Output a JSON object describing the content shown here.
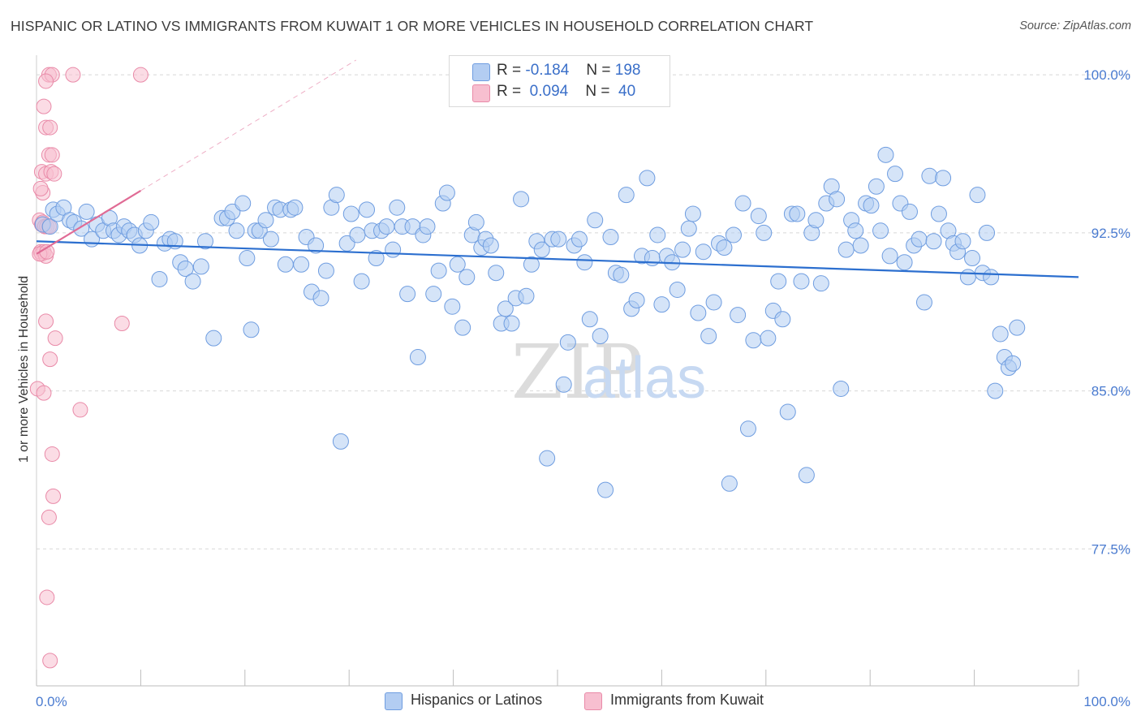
{
  "title": "HISPANIC OR LATINO VS IMMIGRANTS FROM KUWAIT 1 OR MORE VEHICLES IN HOUSEHOLD CORRELATION CHART",
  "source": "Source: ZipAtlas.com",
  "watermark": {
    "zip": "ZIP",
    "atlas": "atlas"
  },
  "colors": {
    "blue_fill": "#b3cdf2",
    "blue_stroke": "#6f9de0",
    "blue_line": "#2c6fcf",
    "pink_fill": "#f7bfd0",
    "pink_stroke": "#e98aa8",
    "pink_line": "#e06b95",
    "axis_text": "#4a7bd0",
    "grid": "#d8d8d8"
  },
  "legend_top": [
    {
      "r_label": "R =",
      "r_value": "-0.184",
      "n_label": "N =",
      "n_value": "198",
      "color": "#b3cdf2",
      "stroke": "#6f9de0"
    },
    {
      "r_label": "R =",
      "r_value": "0.094",
      "n_label": "N =",
      "n_value": "40",
      "color": "#f7bfd0",
      "stroke": "#e98aa8"
    }
  ],
  "chart_data": {
    "type": "scatter",
    "title": "HISPANIC OR LATINO VS IMMIGRANTS FROM KUWAIT 1 OR MORE VEHICLES IN HOUSEHOLD CORRELATION CHART",
    "xlabel": "",
    "ylabel": "1 or more Vehicles in Household",
    "x_tick_labels": [
      "0.0%",
      "100.0%"
    ],
    "y_tick_labels": [
      "100.0%",
      "92.5%",
      "85.0%",
      "77.5%"
    ],
    "y_ticks": [
      100.0,
      92.5,
      85.0,
      77.5
    ],
    "xlim": [
      0,
      100
    ],
    "ylim": [
      71.0,
      100.7
    ],
    "grid": "horizontal-dashed",
    "legend_placement": "bottom",
    "series": [
      {
        "name": "Hispanics or Latinos",
        "color": "#b3cdf2",
        "trend": {
          "x": [
            0,
            100
          ],
          "y": [
            92.1,
            90.4
          ],
          "r": -0.184,
          "n": 198
        },
        "points": [
          [
            0.6,
            92.9
          ],
          [
            1.3,
            92.8
          ],
          [
            1.6,
            93.6
          ],
          [
            2.0,
            93.4
          ],
          [
            2.6,
            93.7
          ],
          [
            3.2,
            93.1
          ],
          [
            3.6,
            93.0
          ],
          [
            4.3,
            92.7
          ],
          [
            4.8,
            93.5
          ],
          [
            5.3,
            92.2
          ],
          [
            5.8,
            92.9
          ],
          [
            6.4,
            92.6
          ],
          [
            7.0,
            93.2
          ],
          [
            7.4,
            92.6
          ],
          [
            7.9,
            92.4
          ],
          [
            8.4,
            92.8
          ],
          [
            8.9,
            92.6
          ],
          [
            9.4,
            92.4
          ],
          [
            9.9,
            91.9
          ],
          [
            10.5,
            92.6
          ],
          [
            11.0,
            93.0
          ],
          [
            11.8,
            90.3
          ],
          [
            12.3,
            92.0
          ],
          [
            12.8,
            92.2
          ],
          [
            13.3,
            92.1
          ],
          [
            13.8,
            91.1
          ],
          [
            14.3,
            90.8
          ],
          [
            15.0,
            90.2
          ],
          [
            15.8,
            90.9
          ],
          [
            16.2,
            92.1
          ],
          [
            17.0,
            87.5
          ],
          [
            17.8,
            93.2
          ],
          [
            18.3,
            93.2
          ],
          [
            18.8,
            93.5
          ],
          [
            19.2,
            92.6
          ],
          [
            19.8,
            93.9
          ],
          [
            20.2,
            91.3
          ],
          [
            20.6,
            87.9
          ],
          [
            21.0,
            92.6
          ],
          [
            21.4,
            92.6
          ],
          [
            22.0,
            93.1
          ],
          [
            22.5,
            92.2
          ],
          [
            22.9,
            93.7
          ],
          [
            23.4,
            93.6
          ],
          [
            23.9,
            91.0
          ],
          [
            24.4,
            93.6
          ],
          [
            24.8,
            93.7
          ],
          [
            25.4,
            91.0
          ],
          [
            25.9,
            92.3
          ],
          [
            26.4,
            89.7
          ],
          [
            26.8,
            91.9
          ],
          [
            27.3,
            89.4
          ],
          [
            27.8,
            90.7
          ],
          [
            28.3,
            93.7
          ],
          [
            28.8,
            94.3
          ],
          [
            29.2,
            82.6
          ],
          [
            29.8,
            92.0
          ],
          [
            30.2,
            93.4
          ],
          [
            30.8,
            92.4
          ],
          [
            31.2,
            90.2
          ],
          [
            31.7,
            93.6
          ],
          [
            32.2,
            92.6
          ],
          [
            32.6,
            91.3
          ],
          [
            33.1,
            92.6
          ],
          [
            33.6,
            92.8
          ],
          [
            34.2,
            91.7
          ],
          [
            34.6,
            93.7
          ],
          [
            35.1,
            92.8
          ],
          [
            35.6,
            89.6
          ],
          [
            36.1,
            92.8
          ],
          [
            36.6,
            86.6
          ],
          [
            37.1,
            92.4
          ],
          [
            37.5,
            92.8
          ],
          [
            38.1,
            89.6
          ],
          [
            38.6,
            90.7
          ],
          [
            39.0,
            93.9
          ],
          [
            39.4,
            94.4
          ],
          [
            39.9,
            89.0
          ],
          [
            40.4,
            91.0
          ],
          [
            40.9,
            88.0
          ],
          [
            41.3,
            90.4
          ],
          [
            41.8,
            92.4
          ],
          [
            42.2,
            93.0
          ],
          [
            42.7,
            91.8
          ],
          [
            43.1,
            92.2
          ],
          [
            43.6,
            91.9
          ],
          [
            44.1,
            90.6
          ],
          [
            44.6,
            88.2
          ],
          [
            45.0,
            88.9
          ],
          [
            45.6,
            88.2
          ],
          [
            46.0,
            89.4
          ],
          [
            46.5,
            94.1
          ],
          [
            47.0,
            89.5
          ],
          [
            47.5,
            91.0
          ],
          [
            48.0,
            92.1
          ],
          [
            48.5,
            91.7
          ],
          [
            49.0,
            81.8
          ],
          [
            49.5,
            92.2
          ],
          [
            50.1,
            92.2
          ],
          [
            50.6,
            85.3
          ],
          [
            51.0,
            87.3
          ],
          [
            51.6,
            91.9
          ],
          [
            52.1,
            92.2
          ],
          [
            52.6,
            91.1
          ],
          [
            53.1,
            88.4
          ],
          [
            53.6,
            93.1
          ],
          [
            54.1,
            87.6
          ],
          [
            54.6,
            80.3
          ],
          [
            55.1,
            92.3
          ],
          [
            55.6,
            90.6
          ],
          [
            56.1,
            90.5
          ],
          [
            56.6,
            94.3
          ],
          [
            57.1,
            88.9
          ],
          [
            57.6,
            89.3
          ],
          [
            58.1,
            91.4
          ],
          [
            58.6,
            95.1
          ],
          [
            59.1,
            91.3
          ],
          [
            59.6,
            92.4
          ],
          [
            60.0,
            89.1
          ],
          [
            60.5,
            91.4
          ],
          [
            61.0,
            91.1
          ],
          [
            61.5,
            89.8
          ],
          [
            62.0,
            91.7
          ],
          [
            62.6,
            92.7
          ],
          [
            63.0,
            93.4
          ],
          [
            63.5,
            88.7
          ],
          [
            64.0,
            91.6
          ],
          [
            64.5,
            87.6
          ],
          [
            65.0,
            89.2
          ],
          [
            65.5,
            92.0
          ],
          [
            66.0,
            91.8
          ],
          [
            66.5,
            80.6
          ],
          [
            66.9,
            92.4
          ],
          [
            67.3,
            88.6
          ],
          [
            67.8,
            93.9
          ],
          [
            68.3,
            83.2
          ],
          [
            68.8,
            87.4
          ],
          [
            69.3,
            93.3
          ],
          [
            69.8,
            92.5
          ],
          [
            70.2,
            87.5
          ],
          [
            70.7,
            88.8
          ],
          [
            71.2,
            90.2
          ],
          [
            71.6,
            88.4
          ],
          [
            72.1,
            84.0
          ],
          [
            72.5,
            93.4
          ],
          [
            73.0,
            93.4
          ],
          [
            73.4,
            90.2
          ],
          [
            73.9,
            81.0
          ],
          [
            74.4,
            92.5
          ],
          [
            74.8,
            93.1
          ],
          [
            75.3,
            90.1
          ],
          [
            75.8,
            93.9
          ],
          [
            76.3,
            94.7
          ],
          [
            76.8,
            94.1
          ],
          [
            77.2,
            85.1
          ],
          [
            77.7,
            91.7
          ],
          [
            78.2,
            93.1
          ],
          [
            78.6,
            92.6
          ],
          [
            79.1,
            91.9
          ],
          [
            79.6,
            93.9
          ],
          [
            80.1,
            93.8
          ],
          [
            80.6,
            94.7
          ],
          [
            81.0,
            92.6
          ],
          [
            81.5,
            96.2
          ],
          [
            81.9,
            91.4
          ],
          [
            82.4,
            95.3
          ],
          [
            82.9,
            93.9
          ],
          [
            83.3,
            91.1
          ],
          [
            83.8,
            93.5
          ],
          [
            84.2,
            91.9
          ],
          [
            84.7,
            92.2
          ],
          [
            85.2,
            89.2
          ],
          [
            85.7,
            95.2
          ],
          [
            86.1,
            92.1
          ],
          [
            86.6,
            93.4
          ],
          [
            87.0,
            95.1
          ],
          [
            87.5,
            92.6
          ],
          [
            88.0,
            92.0
          ],
          [
            88.4,
            91.6
          ],
          [
            88.9,
            92.1
          ],
          [
            89.4,
            90.4
          ],
          [
            89.8,
            91.3
          ],
          [
            90.3,
            94.3
          ],
          [
            90.8,
            90.6
          ],
          [
            91.2,
            92.5
          ],
          [
            91.6,
            90.4
          ],
          [
            92.0,
            85.0
          ],
          [
            92.5,
            87.7
          ],
          [
            92.9,
            86.6
          ],
          [
            93.3,
            86.1
          ],
          [
            93.7,
            86.3
          ],
          [
            94.1,
            88.0
          ]
        ]
      },
      {
        "name": "Immigrants from Kuwait",
        "color": "#f7bfd0",
        "trend": {
          "x": [
            0,
            10
          ],
          "y": [
            91.5,
            94.5
          ],
          "r": 0.094,
          "n": 40
        },
        "points": [
          [
            1.2,
            100.0
          ],
          [
            1.5,
            100.0
          ],
          [
            3.5,
            100.0
          ],
          [
            10.0,
            100.0
          ],
          [
            0.9,
            99.7
          ],
          [
            0.7,
            98.5
          ],
          [
            0.9,
            97.5
          ],
          [
            1.3,
            97.5
          ],
          [
            1.2,
            96.2
          ],
          [
            1.5,
            96.2
          ],
          [
            0.5,
            95.4
          ],
          [
            0.9,
            95.3
          ],
          [
            1.4,
            95.4
          ],
          [
            0.6,
            94.4
          ],
          [
            0.3,
            93.1
          ],
          [
            0.6,
            93.0
          ],
          [
            0.5,
            92.9
          ],
          [
            0.8,
            92.8
          ],
          [
            1.0,
            92.8
          ],
          [
            1.2,
            92.8
          ],
          [
            0.4,
            91.6
          ],
          [
            0.5,
            91.5
          ],
          [
            0.7,
            91.6
          ],
          [
            0.9,
            91.4
          ],
          [
            0.3,
            91.5
          ],
          [
            1.0,
            91.6
          ],
          [
            0.9,
            88.3
          ],
          [
            1.8,
            87.5
          ],
          [
            8.2,
            88.2
          ],
          [
            1.3,
            86.5
          ],
          [
            0.1,
            85.1
          ],
          [
            0.7,
            84.9
          ],
          [
            4.2,
            84.1
          ],
          [
            1.5,
            82.0
          ],
          [
            1.6,
            80.0
          ],
          [
            1.2,
            79.0
          ],
          [
            1.0,
            75.2
          ],
          [
            1.3,
            72.2
          ],
          [
            0.4,
            94.6
          ],
          [
            1.7,
            95.3
          ]
        ]
      }
    ]
  },
  "legend_bottom": [
    {
      "label": "Hispanics or Latinos",
      "color": "#b3cdf2",
      "stroke": "#6f9de0"
    },
    {
      "label": "Immigrants from Kuwait",
      "color": "#f7bfd0",
      "stroke": "#e98aa8"
    }
  ]
}
